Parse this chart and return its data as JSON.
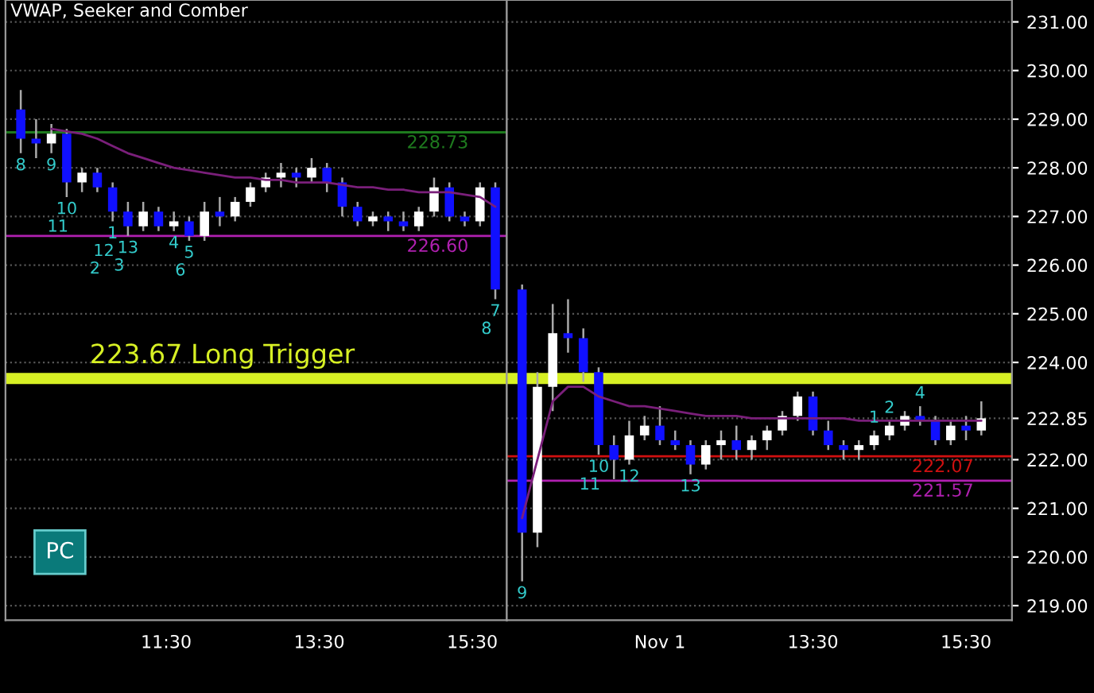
{
  "chart_data": [
    {
      "type": "candlestick",
      "title": "VWAP, Seeker and Comber",
      "x": [
        9.6,
        9.8,
        10.0,
        10.2,
        10.4,
        10.6,
        10.8,
        11.0,
        11.2,
        11.4,
        11.6,
        11.8,
        12.0,
        12.2,
        12.4,
        12.6,
        12.8,
        13.0,
        13.2,
        13.4,
        13.6,
        13.8,
        14.0,
        14.2,
        14.4,
        14.6,
        14.8,
        15.0,
        15.2,
        15.4,
        15.6,
        15.8
      ],
      "ohlc": [
        [
          229.2,
          229.6,
          228.3,
          228.6
        ],
        [
          228.6,
          229.0,
          228.2,
          228.5
        ],
        [
          228.5,
          228.9,
          228.3,
          228.7
        ],
        [
          228.7,
          228.8,
          227.4,
          227.7
        ],
        [
          227.7,
          228.0,
          227.5,
          227.9
        ],
        [
          227.9,
          228.0,
          227.5,
          227.6
        ],
        [
          227.6,
          227.7,
          226.9,
          227.1
        ],
        [
          227.1,
          227.3,
          226.6,
          226.8
        ],
        [
          226.8,
          227.3,
          226.7,
          227.1
        ],
        [
          227.1,
          227.2,
          226.7,
          226.8
        ],
        [
          226.8,
          227.1,
          226.7,
          226.9
        ],
        [
          226.9,
          227.0,
          226.5,
          226.6
        ],
        [
          226.6,
          227.3,
          226.5,
          227.1
        ],
        [
          227.1,
          227.4,
          226.8,
          227.0
        ],
        [
          227.0,
          227.4,
          226.9,
          227.3
        ],
        [
          227.3,
          227.7,
          227.2,
          227.6
        ],
        [
          227.6,
          227.9,
          227.5,
          227.8
        ],
        [
          227.8,
          228.1,
          227.6,
          227.9
        ],
        [
          227.9,
          228.0,
          227.6,
          227.8
        ],
        [
          227.8,
          228.2,
          227.7,
          228.0
        ],
        [
          228.0,
          228.1,
          227.5,
          227.7
        ],
        [
          227.7,
          227.8,
          227.0,
          227.2
        ],
        [
          227.2,
          227.3,
          226.8,
          226.9
        ],
        [
          226.9,
          227.1,
          226.8,
          227.0
        ],
        [
          227.0,
          227.1,
          226.7,
          226.9
        ],
        [
          226.9,
          227.1,
          226.7,
          226.8
        ],
        [
          226.8,
          227.2,
          226.7,
          227.1
        ],
        [
          227.1,
          227.8,
          227.0,
          227.6
        ],
        [
          227.6,
          227.7,
          226.9,
          227.0
        ],
        [
          227.0,
          227.1,
          226.8,
          226.9
        ],
        [
          226.9,
          227.7,
          226.8,
          227.6
        ],
        [
          227.6,
          227.7,
          225.3,
          225.5
        ]
      ],
      "series": [
        {
          "type": "line",
          "color": "#7a1f7a",
          "values": [
            null,
            null,
            228.8,
            228.75,
            228.7,
            228.6,
            228.45,
            228.3,
            228.2,
            228.1,
            228.0,
            227.95,
            227.9,
            227.85,
            227.8,
            227.8,
            227.75,
            227.75,
            227.7,
            227.7,
            227.7,
            227.65,
            227.6,
            227.6,
            227.55,
            227.55,
            227.5,
            227.5,
            227.5,
            227.45,
            227.4,
            227.2
          ]
        }
      ],
      "xlim": [
        9.4,
        15.95
      ],
      "xticks": [
        {
          "value": 11.5,
          "label": "11:30"
        },
        {
          "value": 13.5,
          "label": "13:30"
        },
        {
          "value": 15.5,
          "label": "15:30"
        }
      ],
      "ylim": [
        218.7,
        231.45
      ],
      "yticks": [
        219,
        220,
        221,
        222,
        224,
        225,
        226,
        227,
        228,
        229,
        230,
        231
      ],
      "tick_labels": "x",
      "grid": "y",
      "ref_lines": [
        {
          "axis": "y",
          "value": 223.67,
          "label": "223.67 Long Trigger",
          "color": "#d7f024"
        },
        {
          "axis": "y",
          "value": 228.73,
          "label": "228.73",
          "color": "#1e7a1e"
        },
        {
          "axis": "y",
          "value": 226.6,
          "label": "226.60",
          "color": "#b020b0"
        }
      ],
      "annotations": [
        "PC",
        {
          "text": "8",
          "x": 9.6,
          "y": 228.3
        },
        {
          "text": "9",
          "x": 10.0,
          "y": 228.3
        },
        {
          "text": "10",
          "x": 10.2,
          "y": 227.4
        },
        {
          "text": "11",
          "x": 10.2,
          "y": 227.4
        },
        {
          "text": "1",
          "x": 10.8,
          "y": 226.9
        },
        {
          "text": "12",
          "x": 10.8,
          "y": 226.9
        },
        {
          "text": "2",
          "x": 10.8,
          "y": 226.9
        },
        {
          "text": "13",
          "x": 11.0,
          "y": 226.6
        },
        {
          "text": "3",
          "x": 11.0,
          "y": 226.6
        },
        {
          "text": "4",
          "x": 11.6,
          "y": 226.7
        },
        {
          "text": "5",
          "x": 11.8,
          "y": 226.5
        },
        {
          "text": "6",
          "x": 11.8,
          "y": 226.5
        },
        {
          "text": "7",
          "x": 15.8,
          "y": 225.3
        },
        {
          "text": "8",
          "x": 15.8,
          "y": 225.3
        }
      ]
    },
    {
      "type": "candlestick",
      "x": [
        9.7,
        9.9,
        10.1,
        10.3,
        10.5,
        10.7,
        10.9,
        11.1,
        11.3,
        11.5,
        11.7,
        11.9,
        12.1,
        12.3,
        12.5,
        12.7,
        12.9,
        13.1,
        13.3,
        13.5,
        13.7,
        13.9,
        14.1,
        14.3,
        14.5,
        14.7,
        14.9,
        15.1,
        15.3,
        15.5,
        15.7
      ],
      "ohlc": [
        [
          225.5,
          225.6,
          219.5,
          220.5
        ],
        [
          220.5,
          223.8,
          220.2,
          223.5
        ],
        [
          223.5,
          225.2,
          223.0,
          224.6
        ],
        [
          224.6,
          225.3,
          224.2,
          224.5
        ],
        [
          224.5,
          224.7,
          223.6,
          223.8
        ],
        [
          223.8,
          223.9,
          222.1,
          222.3
        ],
        [
          222.3,
          222.5,
          221.6,
          222.0
        ],
        [
          222.0,
          222.8,
          221.9,
          222.5
        ],
        [
          222.5,
          222.9,
          222.4,
          222.7
        ],
        [
          222.7,
          223.1,
          222.3,
          222.4
        ],
        [
          222.4,
          222.6,
          222.2,
          222.3
        ],
        [
          222.3,
          222.4,
          221.7,
          221.9
        ],
        [
          221.9,
          222.4,
          221.8,
          222.3
        ],
        [
          222.3,
          222.6,
          222.0,
          222.4
        ],
        [
          222.4,
          222.7,
          222.0,
          222.2
        ],
        [
          222.2,
          222.5,
          222.0,
          222.4
        ],
        [
          222.4,
          222.7,
          222.2,
          222.6
        ],
        [
          222.6,
          223.0,
          222.5,
          222.9
        ],
        [
          222.9,
          223.4,
          222.8,
          223.3
        ],
        [
          223.3,
          223.4,
          222.5,
          222.6
        ],
        [
          222.6,
          222.8,
          222.2,
          222.3
        ],
        [
          222.3,
          222.4,
          222.0,
          222.2
        ],
        [
          222.2,
          222.4,
          222.0,
          222.3
        ],
        [
          222.3,
          222.6,
          222.2,
          222.5
        ],
        [
          222.5,
          222.8,
          222.4,
          222.7
        ],
        [
          222.7,
          223.0,
          222.6,
          222.9
        ],
        [
          222.9,
          223.1,
          222.7,
          222.8
        ],
        [
          222.8,
          222.9,
          222.3,
          222.4
        ],
        [
          222.4,
          222.8,
          222.3,
          222.7
        ],
        [
          222.7,
          222.9,
          222.4,
          222.6
        ],
        [
          222.6,
          223.2,
          222.5,
          222.85
        ]
      ],
      "series": [
        {
          "type": "line",
          "color": "#7a1f7a",
          "values": [
            220.8,
            222.0,
            223.2,
            223.5,
            223.5,
            223.3,
            223.2,
            223.1,
            223.1,
            223.05,
            223.0,
            222.95,
            222.9,
            222.9,
            222.9,
            222.85,
            222.85,
            222.85,
            222.85,
            222.85,
            222.85,
            222.85,
            222.8,
            222.8,
            222.8,
            222.8,
            222.8,
            222.8,
            222.8,
            222.8,
            222.8
          ]
        }
      ],
      "xlim": [
        9.5,
        16.1
      ],
      "xticks": [
        {
          "value": 11.5,
          "label": "Nov 1"
        },
        {
          "value": 13.5,
          "label": "13:30"
        },
        {
          "value": 15.5,
          "label": "15:30"
        }
      ],
      "ylim": [
        218.7,
        231.45
      ],
      "yticks": [
        {
          "value": 219,
          "label": "219.00"
        },
        {
          "value": 220,
          "label": "220.00"
        },
        {
          "value": 221,
          "label": "221.00"
        },
        {
          "value": 222,
          "label": "222.00"
        },
        {
          "value": 222.85,
          "label": "222.85"
        },
        {
          "value": 224,
          "label": "224.00"
        },
        {
          "value": 225,
          "label": "225.00"
        },
        {
          "value": 226,
          "label": "226.00"
        },
        {
          "value": 227,
          "label": "227.00"
        },
        {
          "value": 228,
          "label": "228.00"
        },
        {
          "value": 229,
          "label": "229.00"
        },
        {
          "value": 230,
          "label": "230.00"
        },
        {
          "value": 231,
          "label": "231.00"
        }
      ],
      "grid": "y",
      "ref_lines": [
        {
          "axis": "y",
          "value": 223.67,
          "color": "#d7f024"
        },
        {
          "axis": "y",
          "value": 221.57,
          "label": "221.57",
          "color": "#b020b0"
        },
        {
          "axis": "y",
          "value": 222.07,
          "label": "222.07",
          "color": "#d01010"
        }
      ],
      "annotations": [
        {
          "text": "9",
          "x": 9.7,
          "y": 219.5
        },
        {
          "text": "10",
          "x": 10.7,
          "y": 222.1
        },
        {
          "text": "11",
          "x": 10.7,
          "y": 222.1
        },
        {
          "text": "12",
          "x": 11.1,
          "y": 221.9
        },
        {
          "text": "13",
          "x": 11.9,
          "y": 221.7
        },
        {
          "text": "1",
          "x": 14.3,
          "y": 222.6
        },
        {
          "text": "2",
          "x": 14.5,
          "y": 222.8
        },
        {
          "text": "4",
          "x": 14.9,
          "y": 223.1
        }
      ]
    }
  ]
}
